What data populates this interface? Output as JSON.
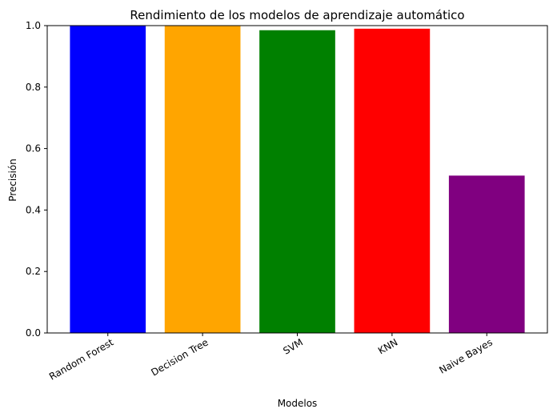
{
  "chart_data": {
    "type": "bar",
    "title": "Rendimiento de los modelos de aprendizaje automático",
    "xlabel": "Modelos",
    "ylabel": "Precisión",
    "categories": [
      "Random Forest",
      "Decision Tree",
      "SVM",
      "KNN",
      "Naive Bayes"
    ],
    "values": [
      1.0,
      1.0,
      0.985,
      0.99,
      0.512
    ],
    "colors": [
      "#0000ff",
      "#ffa500",
      "#008000",
      "#ff0000",
      "#800080"
    ],
    "ylim": [
      0,
      1.0
    ],
    "yticks": [
      0.0,
      0.2,
      0.4,
      0.6,
      0.8,
      1.0
    ],
    "ytick_labels": [
      "0.0",
      "0.2",
      "0.4",
      "0.6",
      "0.8",
      "1.0"
    ],
    "xtick_rotation": 30,
    "grid": false,
    "legend": false
  }
}
